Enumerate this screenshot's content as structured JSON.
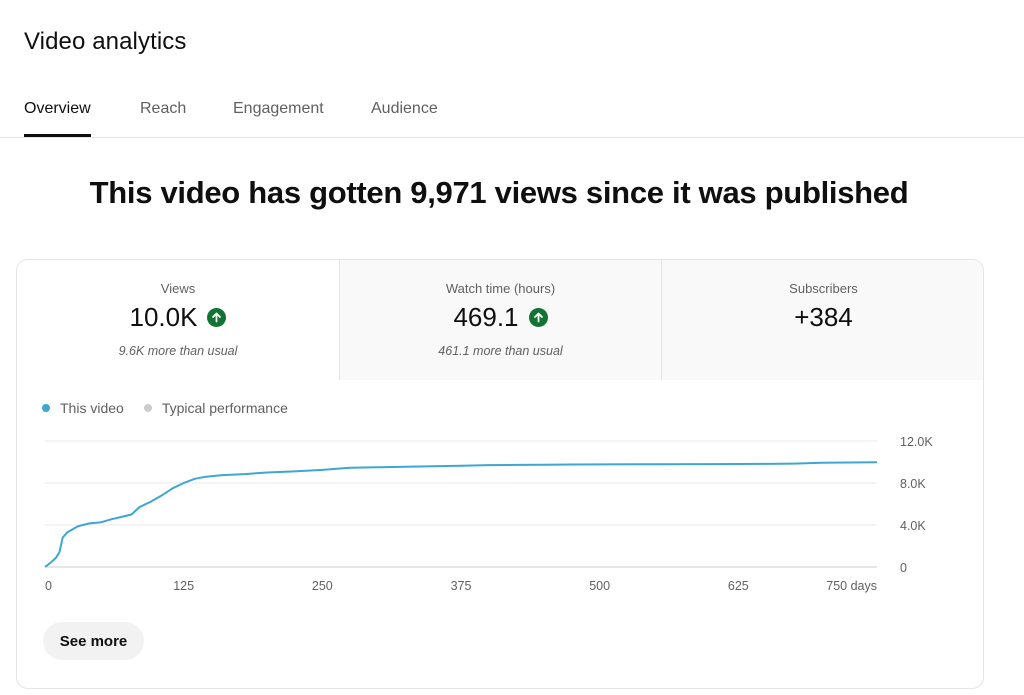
{
  "page": {
    "title": "Video analytics"
  },
  "tabs": [
    {
      "label": "Overview",
      "active": true
    },
    {
      "label": "Reach",
      "active": false
    },
    {
      "label": "Engagement",
      "active": false
    },
    {
      "label": "Audience",
      "active": false
    }
  ],
  "headline": "This video has gotten 9,971 views since it was published",
  "metrics": [
    {
      "label": "Views",
      "value": "10.0K",
      "trend": "up",
      "comparison": "9.6K more than usual"
    },
    {
      "label": "Watch time (hours)",
      "value": "469.1",
      "trend": "up",
      "comparison": "461.1 more than usual"
    },
    {
      "label": "Subscribers",
      "value": "+384"
    }
  ],
  "legend": [
    {
      "label": "This video",
      "color": "#3ea6d1"
    },
    {
      "label": "Typical performance",
      "color": "#cccccc"
    }
  ],
  "chart_data": {
    "type": "line",
    "xlabel": "",
    "ylabel": "",
    "xlim": [
      0,
      750
    ],
    "ylim": [
      0,
      12000
    ],
    "x_ticks": [
      "0",
      "125",
      "250",
      "375",
      "500",
      "625",
      "750 days"
    ],
    "y_ticks": [
      "12.0K",
      "8.0K",
      "4.0K",
      "0"
    ],
    "grid": true,
    "legend_position": "top-left",
    "series": [
      {
        "name": "This video",
        "color": "#3ea6d1",
        "points": [
          [
            0,
            0
          ],
          [
            5,
            400
          ],
          [
            10,
            900
          ],
          [
            13,
            1400
          ],
          [
            16,
            2800
          ],
          [
            20,
            3300
          ],
          [
            25,
            3600
          ],
          [
            30,
            3900
          ],
          [
            40,
            4150
          ],
          [
            50,
            4250
          ],
          [
            60,
            4550
          ],
          [
            70,
            4800
          ],
          [
            78,
            5000
          ],
          [
            85,
            5700
          ],
          [
            95,
            6200
          ],
          [
            105,
            6800
          ],
          [
            115,
            7500
          ],
          [
            125,
            8000
          ],
          [
            135,
            8400
          ],
          [
            145,
            8600
          ],
          [
            160,
            8750
          ],
          [
            180,
            8850
          ],
          [
            200,
            9000
          ],
          [
            225,
            9100
          ],
          [
            250,
            9250
          ],
          [
            275,
            9450
          ],
          [
            300,
            9500
          ],
          [
            325,
            9550
          ],
          [
            350,
            9600
          ],
          [
            375,
            9650
          ],
          [
            400,
            9700
          ],
          [
            425,
            9720
          ],
          [
            450,
            9740
          ],
          [
            475,
            9760
          ],
          [
            500,
            9770
          ],
          [
            550,
            9790
          ],
          [
            600,
            9800
          ],
          [
            650,
            9820
          ],
          [
            675,
            9850
          ],
          [
            700,
            9920
          ],
          [
            725,
            9950
          ],
          [
            750,
            9971
          ]
        ]
      }
    ]
  },
  "actions": {
    "see_more_label": "See more"
  }
}
